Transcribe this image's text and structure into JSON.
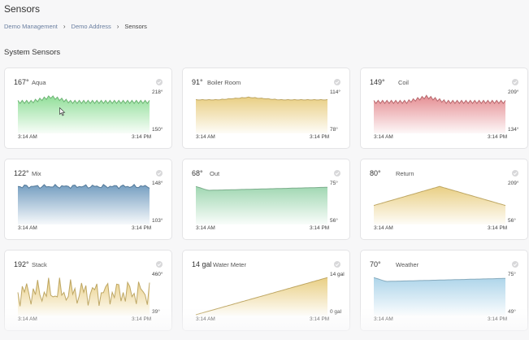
{
  "header": {
    "title": "Sensors"
  },
  "breadcrumb": {
    "items": [
      "Demo Management",
      "Demo Address",
      "Sensors"
    ]
  },
  "section": {
    "title": "System Sensors"
  },
  "colors": {
    "green": "#7ed987",
    "yellow": "#e5c66e",
    "red": "#e0797f",
    "blue": "#5b8cb5",
    "lightgreen": "#8fd0a4",
    "lightblue": "#9fcde6"
  },
  "sensors": [
    {
      "value": "167°",
      "name": "Aqua",
      "max": "218°",
      "min": "150°",
      "start": "3:14 AM",
      "end": "3:14 PM",
      "color": "green",
      "pattern": "zigzag",
      "peak": 0.25
    },
    {
      "value": "91°",
      "name": "Boiler Room",
      "max": "114°",
      "min": "78°",
      "start": "3:14 AM",
      "end": "3:14 PM",
      "color": "yellow",
      "pattern": "flat"
    },
    {
      "value": "149°",
      "name": "Coil",
      "max": "209°",
      "min": "134°",
      "start": "3:14 AM",
      "end": "3:14 PM",
      "color": "red",
      "pattern": "zigzag",
      "peak": 0.4
    },
    {
      "value": "122°",
      "name": "Mix",
      "max": "148°",
      "min": "103°",
      "start": "3:14 AM",
      "end": "3:14 PM",
      "color": "blue",
      "pattern": "noise"
    },
    {
      "value": "68°",
      "name": "Out",
      "max": "75°",
      "min": "56°",
      "start": "3:14 AM",
      "end": "3:14 PM",
      "color": "lightgreen",
      "pattern": "smooth"
    },
    {
      "value": "80°",
      "name": "Return",
      "max": "209°",
      "min": "56°",
      "start": "3:14 AM",
      "end": "3:14 PM",
      "color": "yellow",
      "pattern": "triangle"
    },
    {
      "value": "192°",
      "name": "Stack",
      "max": "460°",
      "min": "39°",
      "start": "3:14 AM",
      "end": "3:14 PM",
      "color": "yellow",
      "pattern": "spiky"
    },
    {
      "value": "14 gal",
      "name": "Water Meter",
      "max": "14 gal",
      "min": "0 gal",
      "start": "3:14 AM",
      "end": "3:14 PM",
      "color": "yellow",
      "pattern": "ramp"
    },
    {
      "value": "70°",
      "name": "Weather",
      "max": "75°",
      "min": "49°",
      "start": "3:14 AM",
      "end": "3:14 PM",
      "color": "lightblue",
      "pattern": "smooth"
    }
  ]
}
